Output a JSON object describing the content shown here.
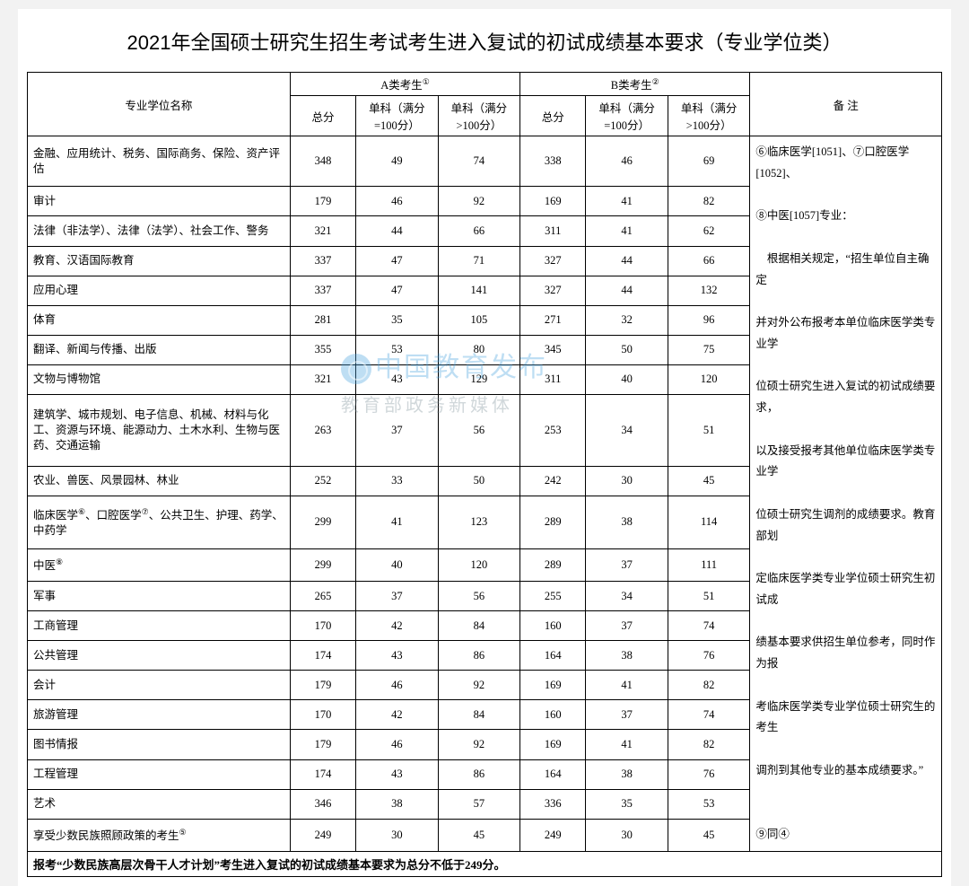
{
  "title": "2021年全国硕士研究生招生考试考生进入复试的初试成绩基本要求（专业学位类）",
  "header": {
    "nameCol": "专业学位名称",
    "groupA": "A类考生",
    "groupB": "B类考生",
    "noteCol": "备  注",
    "total": "总分",
    "sub100": "单科（满分=100分）",
    "subOver": "单科（满分>100分）",
    "supA": "①",
    "supB": "②"
  },
  "rows": [
    {
      "name": "金融、应用统计、税务、国际商务、保险、资产评估",
      "a": [
        348,
        49,
        74
      ],
      "b": [
        338,
        46,
        69
      ]
    },
    {
      "name": "审计",
      "a": [
        179,
        46,
        92
      ],
      "b": [
        169,
        41,
        82
      ]
    },
    {
      "name": "法律（非法学）、法律（法学）、社会工作、警务",
      "a": [
        321,
        44,
        66
      ],
      "b": [
        311,
        41,
        62
      ]
    },
    {
      "name": "教育、汉语国际教育",
      "a": [
        337,
        47,
        71
      ],
      "b": [
        327,
        44,
        66
      ]
    },
    {
      "name": "应用心理",
      "a": [
        337,
        47,
        141
      ],
      "b": [
        327,
        44,
        132
      ]
    },
    {
      "name": "体育",
      "a": [
        281,
        35,
        105
      ],
      "b": [
        271,
        32,
        96
      ]
    },
    {
      "name": "翻译、新闻与传播、出版",
      "a": [
        355,
        53,
        80
      ],
      "b": [
        345,
        50,
        75
      ]
    },
    {
      "name": "文物与博物馆",
      "a": [
        321,
        43,
        129
      ],
      "b": [
        311,
        40,
        120
      ]
    },
    {
      "name": "建筑学、城市规划、电子信息、机械、材料与化工、资源与环境、能源动力、土木水利、生物与医药、交通运输",
      "a": [
        263,
        37,
        56
      ],
      "b": [
        253,
        34,
        51
      ]
    },
    {
      "name": "农业、兽医、风景园林、林业",
      "a": [
        252,
        33,
        50
      ],
      "b": [
        242,
        30,
        45
      ]
    },
    {
      "name": "临床医学<sup>⑥</sup>、口腔医学<sup>⑦</sup>、公共卫生、护理、药学、中药学",
      "a": [
        299,
        41,
        123
      ],
      "b": [
        289,
        38,
        114
      ]
    },
    {
      "name": "中医<sup>⑧</sup>",
      "a": [
        299,
        40,
        120
      ],
      "b": [
        289,
        37,
        111
      ]
    },
    {
      "name": "军事",
      "a": [
        265,
        37,
        56
      ],
      "b": [
        255,
        34,
        51
      ]
    },
    {
      "name": "工商管理",
      "a": [
        170,
        42,
        84
      ],
      "b": [
        160,
        37,
        74
      ]
    },
    {
      "name": "公共管理",
      "a": [
        174,
        43,
        86
      ],
      "b": [
        164,
        38,
        76
      ]
    },
    {
      "name": "会计",
      "a": [
        179,
        46,
        92
      ],
      "b": [
        169,
        41,
        82
      ]
    },
    {
      "name": "旅游管理",
      "a": [
        170,
        42,
        84
      ],
      "b": [
        160,
        37,
        74
      ]
    },
    {
      "name": "图书情报",
      "a": [
        179,
        46,
        92
      ],
      "b": [
        169,
        41,
        82
      ]
    },
    {
      "name": "工程管理",
      "a": [
        174,
        43,
        86
      ],
      "b": [
        164,
        38,
        76
      ]
    },
    {
      "name": "艺术",
      "a": [
        346,
        38,
        57
      ],
      "b": [
        336,
        35,
        53
      ]
    },
    {
      "name": "享受少数民族照顾政策的考生<sup>⑤</sup>",
      "a": [
        249,
        30,
        45
      ],
      "b": [
        249,
        30,
        45
      ]
    }
  ],
  "note": "⑥临床医学[1051]、⑦口腔医学[1052]、<br><br>⑧中医[1057]专业：<br><br>　根据相关规定，“招生单位自主确定<br><br>并对外公布报考本单位临床医学类专业学<br><br>位硕士研究生进入复试的初试成绩要求，<br><br>以及接受报考其他单位临床医学类专业学<br><br>位硕士研究生调剂的成绩要求。教育部划<br><br>定临床医学类专业学位硕士研究生初试成<br><br>绩基本要求供招生单位参考，同时作为报<br><br>考临床医学类专业学位硕士研究生的考生<br><br>调剂到其他专业的基本成绩要求。”<br><br><br>⑨同④",
  "footnote": "报考“少数民族高层次骨干人才计划”考生进入复试的初试成绩基本要求为总分不低于249分。",
  "watermark": {
    "main": "中国教育发布",
    "sub": "教育部政务新媒体"
  },
  "style": {
    "nameColWidth": 240,
    "numColWidth": 60,
    "subColWidth": 75,
    "noteColWidth": 175,
    "borderColor": "#000000",
    "bgColor": "#ffffff",
    "titleFontSize": 22,
    "cellFontSize": 12.5,
    "noteFontSize": 12.5,
    "watermarkColor": "rgba(70,160,220,0.35)"
  }
}
